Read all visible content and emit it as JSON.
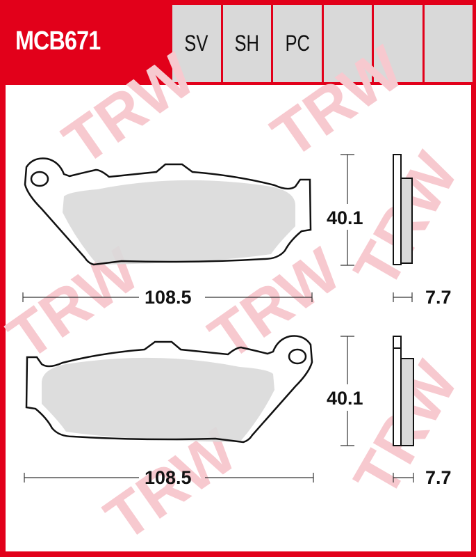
{
  "header": {
    "part_number": "MCB671",
    "compounds": [
      "SV",
      "SH",
      "PC",
      "",
      "",
      ""
    ]
  },
  "watermark": "TRW",
  "pads": [
    {
      "width": "108.5",
      "height": "40.1",
      "thickness": "7.7"
    },
    {
      "width": "108.5",
      "height": "40.1",
      "thickness": "7.7"
    }
  ],
  "colors": {
    "brand_red": "#e2001a",
    "friction": "#d9d9d9",
    "cell": "#d9d9d9"
  }
}
